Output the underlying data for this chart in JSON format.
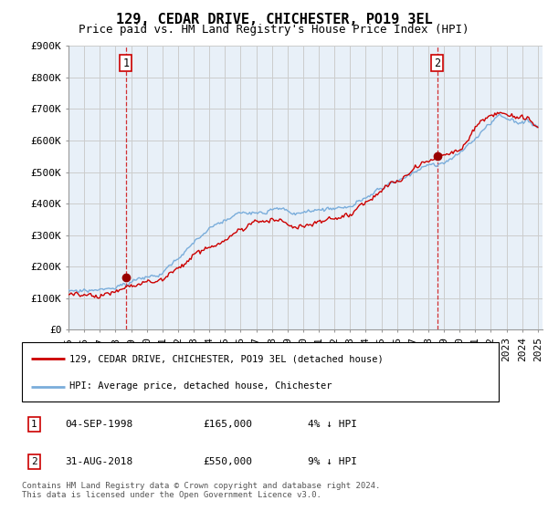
{
  "title": "129, CEDAR DRIVE, CHICHESTER, PO19 3EL",
  "subtitle": "Price paid vs. HM Land Registry's House Price Index (HPI)",
  "ylim": [
    0,
    900000
  ],
  "yticks": [
    0,
    100000,
    200000,
    300000,
    400000,
    500000,
    600000,
    700000,
    800000,
    900000
  ],
  "ytick_labels": [
    "£0",
    "£100K",
    "£200K",
    "£300K",
    "£400K",
    "£500K",
    "£600K",
    "£700K",
    "£800K",
    "£900K"
  ],
  "x_start_year": 1995,
  "x_end_year": 2025,
  "transaction1": {
    "date": "1998-09-04",
    "price": 165000,
    "label": "1",
    "hpi_pct": "4% ↓ HPI",
    "date_str": "04-SEP-1998",
    "price_str": "£165,000"
  },
  "transaction2": {
    "date": "2018-08-31",
    "price": 550000,
    "label": "2",
    "hpi_pct": "9% ↓ HPI",
    "date_str": "31-AUG-2018",
    "price_str": "£550,000"
  },
  "line_color_red": "#cc0000",
  "line_color_blue": "#7aaddb",
  "fill_color_blue": "#ddeeff",
  "grid_color": "#cccccc",
  "bg_color": "#ffffff",
  "plot_bg_color": "#e8f0f8",
  "legend_label_red": "129, CEDAR DRIVE, CHICHESTER, PO19 3EL (detached house)",
  "legend_label_blue": "HPI: Average price, detached house, Chichester",
  "footer": "Contains HM Land Registry data © Crown copyright and database right 2024.\nThis data is licensed under the Open Government Licence v3.0.",
  "title_fontsize": 11,
  "subtitle_fontsize": 9,
  "axis_fontsize": 8
}
